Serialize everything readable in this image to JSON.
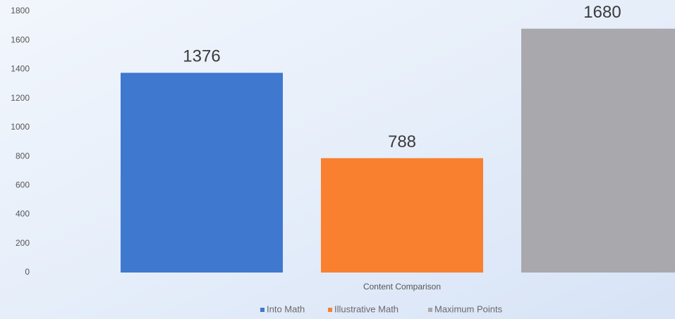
{
  "chart_data": {
    "type": "bar",
    "categories": [
      "Content Comparison"
    ],
    "series": [
      {
        "name": "Into Math",
        "color": "#3f78cf",
        "values": [
          1376
        ]
      },
      {
        "name": "Illustrative Math",
        "color": "#f8802f",
        "values": [
          788
        ]
      },
      {
        "name": "Maximum Points",
        "color": "#a9a9ad",
        "values": [
          1680
        ]
      }
    ],
    "ylim": [
      0,
      1800
    ],
    "yticks": [
      0,
      200,
      400,
      600,
      800,
      1000,
      1200,
      1400,
      1600,
      1800
    ],
    "grid": false,
    "legend": "bottom"
  }
}
